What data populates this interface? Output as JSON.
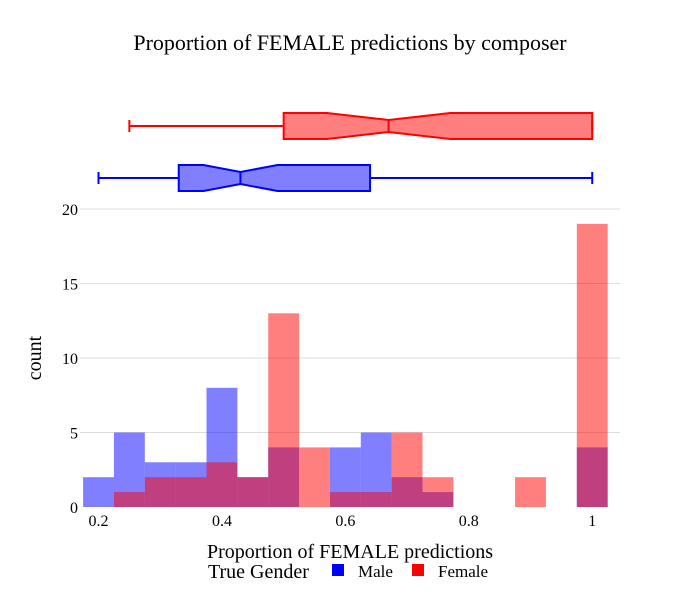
{
  "chart_data": {
    "type": "bar",
    "title": "Proportion of FEMALE predictions by composer",
    "xlabel": "Proportion of FEMALE predictions",
    "ylabel": "count",
    "xlim": [
      0.17,
      1.045
    ],
    "ylim": [
      0,
      20
    ],
    "x_ticks": [
      0.2,
      0.4,
      0.6,
      0.8,
      1
    ],
    "x_tick_labels": [
      "0.2",
      "0.4",
      "0.6",
      "0.8",
      "1"
    ],
    "y_ticks": [
      0,
      5,
      10,
      15,
      20
    ],
    "y_tick_labels": [
      "0",
      "5",
      "10",
      "15",
      "20"
    ],
    "grid": true,
    "barmode": "overlay",
    "bin_edges": [
      0.175,
      0.225,
      0.275,
      0.325,
      0.375,
      0.425,
      0.475,
      0.525,
      0.575,
      0.625,
      0.675,
      0.725,
      0.775,
      0.825,
      0.875,
      0.925,
      0.975,
      1.025
    ],
    "legend": {
      "title": "True Gender",
      "placement": "bottom-center",
      "orientation": "horizontal"
    },
    "series": [
      {
        "name": "Male",
        "color": "#0000ff",
        "counts": [
          2,
          5,
          3,
          3,
          8,
          2,
          4,
          0,
          4,
          5,
          2,
          1,
          0,
          0,
          0,
          0,
          4
        ],
        "box": {
          "min": 0.2,
          "q1": 0.33,
          "median": 0.43,
          "q3": 0.64,
          "max": 1.0,
          "notch_low": 0.37,
          "notch_high": 0.49
        }
      },
      {
        "name": "Female",
        "color": "#ff0000",
        "counts": [
          0,
          1,
          2,
          2,
          3,
          2,
          13,
          4,
          1,
          1,
          5,
          2,
          0,
          0,
          2,
          0,
          19
        ],
        "box": {
          "min": 0.25,
          "q1": 0.5,
          "median": 0.67,
          "q3": 1.0,
          "max": 1.0,
          "notch_low": 0.57,
          "notch_high": 0.77
        }
      }
    ]
  }
}
